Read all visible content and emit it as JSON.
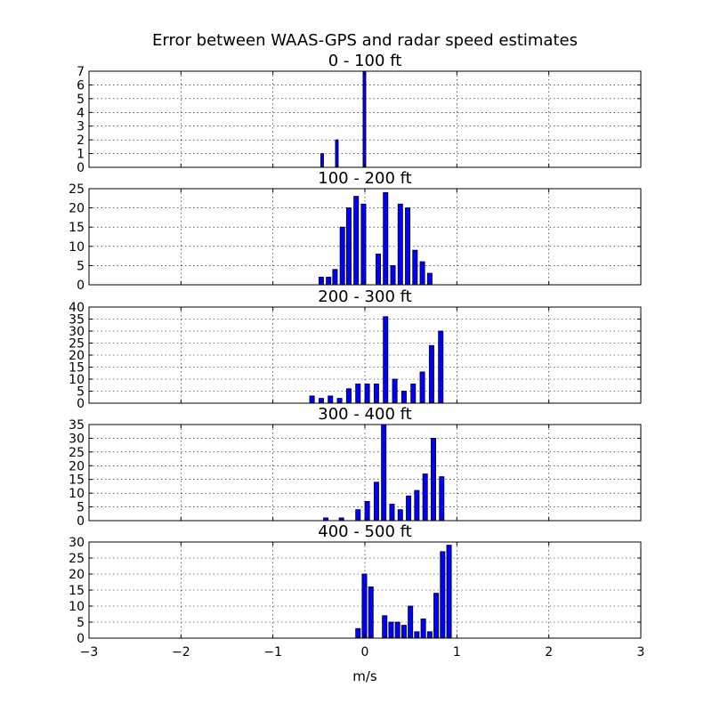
{
  "chart_data": {
    "type": "bar",
    "title": "Error between WAAS-GPS and radar speed estimates",
    "xlabel": "m/s",
    "xlim": [
      -3,
      3
    ],
    "xticks": [
      -3,
      -2,
      -1,
      0,
      1,
      2,
      3
    ],
    "xtick_labels": [
      "−3",
      "−2",
      "−1",
      "0",
      "1",
      "2",
      "3"
    ],
    "bin_width": 0.05,
    "grid": true,
    "bar_color": "#0000ff",
    "subplots": [
      {
        "title": "0 - 100 ft",
        "ylim": [
          0,
          7
        ],
        "yticks": [
          0,
          1,
          2,
          3,
          4,
          5,
          6,
          7
        ],
        "ytick_labels": [
          "0",
          "1",
          "2",
          "3",
          "4",
          "5",
          "6",
          "7"
        ],
        "bars": [
          {
            "x": -0.48,
            "w": 0.03,
            "v": 1
          },
          {
            "x": -0.32,
            "w": 0.03,
            "v": 2
          },
          {
            "x": -0.02,
            "w": 0.03,
            "v": 7
          }
        ]
      },
      {
        "title": "100 - 200 ft",
        "ylim": [
          0,
          25
        ],
        "yticks": [
          0,
          5,
          10,
          15,
          20,
          25
        ],
        "ytick_labels": [
          "0",
          "5",
          "10",
          "15",
          "20",
          "25"
        ],
        "bars": [
          {
            "x": -0.5,
            "v": 2
          },
          {
            "x": -0.42,
            "v": 2
          },
          {
            "x": -0.35,
            "v": 4
          },
          {
            "x": -0.27,
            "v": 15
          },
          {
            "x": -0.2,
            "v": 20
          },
          {
            "x": -0.12,
            "v": 23
          },
          {
            "x": -0.04,
            "v": 21
          },
          {
            "x": 0.12,
            "v": 8
          },
          {
            "x": 0.2,
            "v": 24
          },
          {
            "x": 0.28,
            "v": 5
          },
          {
            "x": 0.36,
            "v": 21
          },
          {
            "x": 0.44,
            "v": 20
          },
          {
            "x": 0.52,
            "v": 9
          },
          {
            "x": 0.6,
            "v": 6
          },
          {
            "x": 0.68,
            "v": 3
          }
        ]
      },
      {
        "title": "200 - 300 ft",
        "ylim": [
          0,
          40
        ],
        "yticks": [
          0,
          5,
          10,
          15,
          20,
          25,
          30,
          35,
          40
        ],
        "ytick_labels": [
          "0",
          "5",
          "10",
          "15",
          "20",
          "25",
          "30",
          "35",
          "40"
        ],
        "bars": [
          {
            "x": -0.6,
            "v": 3
          },
          {
            "x": -0.5,
            "v": 2
          },
          {
            "x": -0.4,
            "v": 3
          },
          {
            "x": -0.3,
            "v": 2
          },
          {
            "x": -0.2,
            "v": 6
          },
          {
            "x": -0.1,
            "v": 8
          },
          {
            "x": 0.0,
            "v": 8
          },
          {
            "x": 0.1,
            "v": 8
          },
          {
            "x": 0.2,
            "v": 36
          },
          {
            "x": 0.3,
            "v": 10
          },
          {
            "x": 0.4,
            "v": 5
          },
          {
            "x": 0.5,
            "v": 8
          },
          {
            "x": 0.6,
            "v": 13
          },
          {
            "x": 0.7,
            "v": 24
          },
          {
            "x": 0.8,
            "v": 30
          }
        ]
      },
      {
        "title": "300 - 400 ft",
        "ylim": [
          0,
          35
        ],
        "yticks": [
          0,
          5,
          10,
          15,
          20,
          25,
          30,
          35
        ],
        "ytick_labels": [
          "0",
          "5",
          "10",
          "15",
          "20",
          "25",
          "30",
          "35"
        ],
        "bars": [
          {
            "x": -0.45,
            "v": 1
          },
          {
            "x": -0.28,
            "v": 1
          },
          {
            "x": -0.1,
            "v": 4
          },
          {
            "x": 0.0,
            "v": 7
          },
          {
            "x": 0.1,
            "v": 14
          },
          {
            "x": 0.18,
            "v": 35
          },
          {
            "x": 0.27,
            "v": 6
          },
          {
            "x": 0.36,
            "v": 4
          },
          {
            "x": 0.45,
            "v": 9
          },
          {
            "x": 0.54,
            "v": 11
          },
          {
            "x": 0.63,
            "v": 17
          },
          {
            "x": 0.72,
            "v": 30
          },
          {
            "x": 0.81,
            "v": 16
          }
        ]
      },
      {
        "title": "400 - 500 ft",
        "ylim": [
          0,
          30
        ],
        "yticks": [
          0,
          5,
          10,
          15,
          20,
          25,
          30
        ],
        "ytick_labels": [
          "0",
          "5",
          "10",
          "15",
          "20",
          "25",
          "30"
        ],
        "bars": [
          {
            "x": -0.1,
            "v": 3
          },
          {
            "x": -0.03,
            "v": 20
          },
          {
            "x": 0.04,
            "v": 16
          },
          {
            "x": 0.19,
            "v": 7
          },
          {
            "x": 0.26,
            "v": 5
          },
          {
            "x": 0.33,
            "v": 5
          },
          {
            "x": 0.4,
            "v": 4
          },
          {
            "x": 0.47,
            "v": 10
          },
          {
            "x": 0.54,
            "v": 2
          },
          {
            "x": 0.61,
            "v": 6
          },
          {
            "x": 0.68,
            "v": 2
          },
          {
            "x": 0.75,
            "v": 14
          },
          {
            "x": 0.82,
            "v": 27
          },
          {
            "x": 0.89,
            "v": 29
          }
        ]
      }
    ]
  }
}
